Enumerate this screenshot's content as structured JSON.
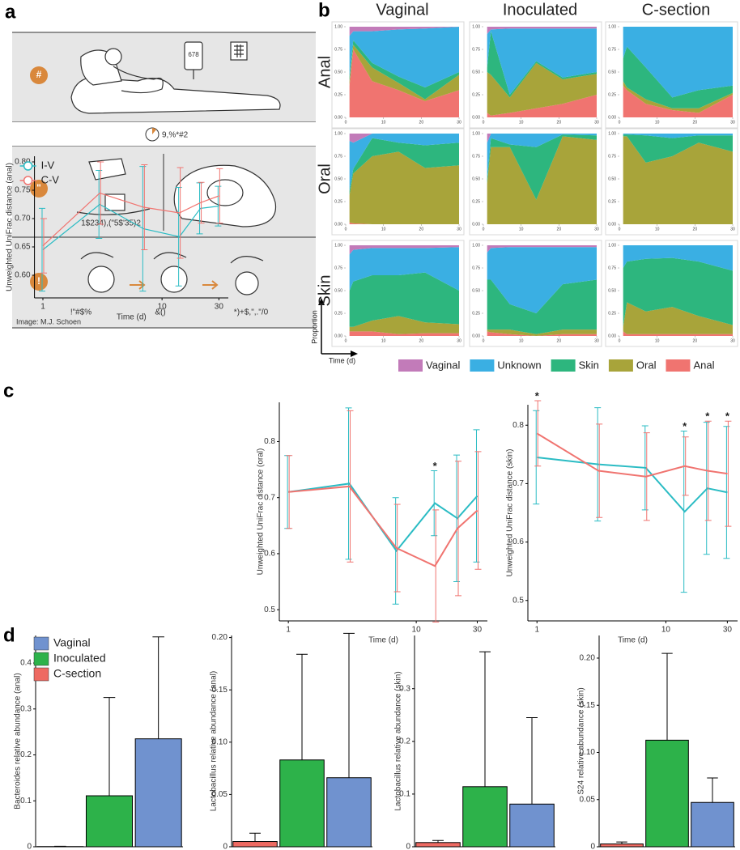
{
  "panel_labels": [
    "a",
    "b",
    "c",
    "d"
  ],
  "illustration": {
    "credit": "Image: M.J. Schoen",
    "steps": [
      "#",
      "\"",
      "!"
    ],
    "iv_bag": "678",
    "timeline": "9,%*#2",
    "swab_label": "1$234),(\"5$'35)2",
    "captions": [
      "!\"#$%",
      "&()",
      "*)+$,\",.\"/0"
    ]
  },
  "chart_data": [
    {
      "type": "stacked_area_grid",
      "columns": [
        "Vaginal",
        "Inoculated",
        "C-section"
      ],
      "rows": [
        "Anal",
        "Oral",
        "Skin"
      ],
      "ylabel": "Proportion",
      "xlabel": "Time (d)",
      "x": [
        1,
        2,
        7,
        14,
        21,
        30
      ],
      "xlim": [
        0,
        30
      ],
      "xticks": [
        0,
        10,
        20,
        30
      ],
      "ylim": [
        0,
        1
      ],
      "yticks": [
        {
          "value": 0,
          "label": "0.00"
        },
        0.25,
        {
          "value": 0.5,
          "label": "0.50"
        },
        0.75,
        {
          "value": 1,
          "label": "1.00"
        }
      ],
      "legend": [
        {
          "name": "Vaginal",
          "color": "#c27bb9"
        },
        {
          "name": "Unknown",
          "color": "#3aafe3"
        },
        {
          "name": "Skin",
          "color": "#2db67e"
        },
        {
          "name": "Oral",
          "color": "#a8a43a"
        },
        {
          "name": "Anal",
          "color": "#f07470"
        }
      ],
      "panels": [
        [
          {
            "series": [
              {
                "values": [
                  0.1,
                  0.05,
                  0.05,
                  0.03,
                  0.02,
                  0
                ]
              },
              {
                "values": [
                  0.45,
                  0.1,
                  0.35,
                  0.52,
                  0.65,
                  0.5
                ]
              },
              {
                "values": [
                  0.05,
                  0.05,
                  0.05,
                  0.07,
                  0.13,
                  0.03
                ]
              },
              {
                "values": [
                  0.05,
                  0.05,
                  0.15,
                  0.08,
                  0.02,
                  0.17
                ]
              },
              {
                "values": [
                  0.35,
                  0.75,
                  0.4,
                  0.3,
                  0.18,
                  0.3
                ]
              }
            ]
          },
          {
            "series": [
              {
                "values": [
                  0.08,
                  0.03,
                  0.02,
                  0.02,
                  0.02,
                  0.02
                ]
              },
              {
                "values": [
                  0.37,
                  0.02,
                  0.73,
                  0.36,
                  0.54,
                  0.48
                ]
              },
              {
                "values": [
                  0.05,
                  0.48,
                  0.03,
                  0.02,
                  0.02,
                  0.02
                ]
              },
              {
                "values": [
                  0.45,
                  0.45,
                  0.17,
                  0.5,
                  0.27,
                  0.23
                ]
              },
              {
                "values": [
                  0.05,
                  0.02,
                  0.05,
                  0.1,
                  0.15,
                  0.25
                ]
              }
            ]
          },
          {
            "series": [
              {
                "values": [
                  0,
                  0,
                  0,
                  0,
                  0,
                  0
                ]
              },
              {
                "values": [
                  0.35,
                  0.22,
                  0.45,
                  0.78,
                  0.7,
                  0.65
                ]
              },
              {
                "values": [
                  0.25,
                  0.45,
                  0.35,
                  0.12,
                  0.2,
                  0.08
                ]
              },
              {
                "values": [
                  0.05,
                  0.03,
                  0.05,
                  0.02,
                  0.05,
                  0.02
                ]
              },
              {
                "values": [
                  0.35,
                  0.3,
                  0.15,
                  0.08,
                  0.05,
                  0.25
                ]
              }
            ]
          }
        ],
        [
          {
            "series": [
              {
                "values": [
                  0.08,
                  0.1,
                  0,
                  0,
                  0,
                  0
                ]
              },
              {
                "values": [
                  0.55,
                  0.29,
                  0.05,
                  0.1,
                  0.13,
                  0.1
                ]
              },
              {
                "values": [
                  0.05,
                  0.05,
                  0.2,
                  0.1,
                  0.25,
                  0.25
                ]
              },
              {
                "values": [
                  0.3,
                  0.55,
                  0.75,
                  0.8,
                  0.62,
                  0.65
                ]
              },
              {
                "values": [
                  0.02,
                  0.01,
                  0,
                  0,
                  0,
                  0
                ]
              }
            ]
          },
          {
            "series": [
              {
                "values": [
                  0.1,
                  0,
                  0,
                  0,
                  0,
                  0
                ]
              },
              {
                "values": [
                  0.4,
                  0.05,
                  0.12,
                  0.15,
                  0.01,
                  0.02
                ]
              },
              {
                "values": [
                  0.05,
                  0.1,
                  0.03,
                  0.58,
                  0.02,
                  0.05
                ]
              },
              {
                "values": [
                  0.45,
                  0.85,
                  0.85,
                  0.27,
                  0.97,
                  0.93
                ]
              },
              {
                "values": [
                  0,
                  0,
                  0,
                  0,
                  0,
                  0
                ]
              }
            ]
          },
          {
            "series": [
              {
                "values": [
                  0,
                  0,
                  0,
                  0,
                  0,
                  0
                ]
              },
              {
                "values": [
                  0.01,
                  0.01,
                  0.02,
                  0.05,
                  0.02,
                  0.02
                ]
              },
              {
                "values": [
                  0.02,
                  0.02,
                  0.3,
                  0.2,
                  0.08,
                  0.18
                ]
              },
              {
                "values": [
                  0.97,
                  0.97,
                  0.68,
                  0.75,
                  0.9,
                  0.8
                ]
              },
              {
                "values": [
                  0,
                  0,
                  0,
                  0,
                  0,
                  0
                ]
              }
            ]
          }
        ],
        [
          {
            "series": [
              {
                "values": [
                  0.1,
                  0.05,
                  0.03,
                  0.03,
                  0.03,
                  0.02
                ]
              },
              {
                "values": [
                  0.4,
                  0.35,
                  0.3,
                  0.3,
                  0.27,
                  0.48
                ]
              },
              {
                "values": [
                  0.4,
                  0.5,
                  0.5,
                  0.45,
                  0.55,
                  0.37
                ]
              },
              {
                "values": [
                  0.05,
                  0.05,
                  0.12,
                  0.2,
                  0.12,
                  0.1
                ]
              },
              {
                "values": [
                  0.05,
                  0.05,
                  0.05,
                  0.02,
                  0.03,
                  0.03
                ]
              }
            ]
          },
          {
            "series": [
              {
                "values": [
                  0.08,
                  0.03,
                  0.02,
                  0.02,
                  0.02,
                  0.02
                ]
              },
              {
                "values": [
                  0.3,
                  0.35,
                  0.63,
                  0.73,
                  0.41,
                  0.36
                ]
              },
              {
                "values": [
                  0.55,
                  0.55,
                  0.28,
                  0.23,
                  0.5,
                  0.55
                ]
              },
              {
                "values": [
                  0.02,
                  0.03,
                  0.05,
                  0.02,
                  0.05,
                  0.05
                ]
              },
              {
                "values": [
                  0.05,
                  0.04,
                  0.02,
                  0,
                  0.02,
                  0.02
                ]
              }
            ]
          },
          {
            "series": [
              {
                "values": [
                  0,
                  0,
                  0,
                  0,
                  0,
                  0
                ]
              },
              {
                "values": [
                  0.25,
                  0.18,
                  0.15,
                  0.14,
                  0.18,
                  0.28
                ]
              },
              {
                "values": [
                  0.65,
                  0.45,
                  0.58,
                  0.54,
                  0.6,
                  0.6
                ]
              },
              {
                "values": [
                  0.05,
                  0.35,
                  0.25,
                  0.3,
                  0.2,
                  0.1
                ]
              },
              {
                "values": [
                  0.05,
                  0.02,
                  0.02,
                  0.02,
                  0.02,
                  0.02
                ]
              }
            ]
          }
        ]
      ]
    },
    {
      "type": "line",
      "ylabel": "Unweighted UniFrac distance (anal)",
      "xlabel": "Time (d)",
      "x": [
        1,
        3,
        7,
        14,
        21,
        30
      ],
      "xscale": "log",
      "xlim": [
        0.85,
        36
      ],
      "xticks": [
        1,
        10,
        30
      ],
      "ylim": [
        0.56,
        0.81
      ],
      "yticks": [
        {
          "value": 0.6,
          "label": "0.60"
        },
        0.65,
        {
          "value": 0.7,
          "label": "0.70"
        },
        0.75,
        {
          "value": 0.8,
          "label": "0.80"
        }
      ],
      "series": [
        {
          "name": "I-V",
          "color": "#2bbcc4",
          "values": [
            0.645,
            0.725,
            0.682,
            0.668,
            0.718,
            0.722
          ],
          "errors": [
            0.073,
            0.06,
            0.11,
            0.087,
            0.045,
            0.035
          ]
        },
        {
          "name": "C-V",
          "color": "#f07470",
          "values": [
            0.652,
            0.745,
            0.72,
            0.71,
            0.728,
            0.74
          ],
          "errors": [
            0.048,
            0.055,
            0.075,
            0.08,
            0.036,
            0.048
          ]
        }
      ]
    },
    {
      "type": "line",
      "ylabel": "Unweighted UniFrac distance (oral)",
      "xlabel": "Time (d)",
      "x": [
        1,
        3,
        7,
        14,
        21,
        30
      ],
      "xscale": "log",
      "xlim": [
        0.85,
        36
      ],
      "xticks": [
        1,
        10,
        30
      ],
      "ylim": [
        0.48,
        0.87
      ],
      "yticks": [
        0.5,
        0.6,
        0.7,
        0.8
      ],
      "series": [
        {
          "color": "#2bbcc4",
          "values": [
            0.71,
            0.725,
            0.605,
            0.69,
            0.663,
            0.703
          ],
          "errors": [
            0.065,
            0.135,
            0.095,
            0.058,
            0.113,
            0.118
          ]
        },
        {
          "color": "#f07470",
          "values": [
            0.71,
            0.72,
            0.61,
            0.578,
            0.645,
            0.677
          ],
          "errors": [
            0.065,
            0.135,
            0.078,
            0.1,
            0.12,
            0.105
          ]
        }
      ],
      "annotations": [
        {
          "x": 14,
          "text": "*"
        }
      ]
    },
    {
      "type": "line",
      "ylabel": "Unweighted UniFrac distance (skin)",
      "xlabel": "Time (d)",
      "x": [
        1,
        3,
        7,
        14,
        21,
        30
      ],
      "xscale": "log",
      "xlim": [
        0.85,
        36
      ],
      "xticks": [
        1,
        10,
        30
      ],
      "ylim": [
        0.465,
        0.835
      ],
      "yticks": [
        0.5,
        0.6,
        0.7,
        0.8
      ],
      "series": [
        {
          "color": "#2bbcc4",
          "values": [
            0.745,
            0.733,
            0.727,
            0.652,
            0.692,
            0.685
          ],
          "errors": [
            0.08,
            0.097,
            0.072,
            0.138,
            0.113,
            0.113
          ]
        },
        {
          "color": "#f07470",
          "values": [
            0.786,
            0.722,
            0.712,
            0.73,
            0.722,
            0.717
          ],
          "errors": [
            0.056,
            0.08,
            0.075,
            0.05,
            0.085,
            0.09
          ]
        }
      ],
      "annotations": [
        {
          "x": 1,
          "text": "*"
        },
        {
          "x": 14,
          "text": "*"
        },
        {
          "x": 21,
          "text": "*"
        },
        {
          "x": 30,
          "text": "*"
        }
      ]
    },
    {
      "type": "bar",
      "ylabel": "Bacteroides relative abundance (anal)",
      "ylim": [
        0,
        0.46
      ],
      "yticks": [
        0,
        0.1,
        0.2,
        0.3,
        0.4
      ],
      "series": [
        {
          "name": "Vaginal",
          "color": "#7092cf",
          "values": [
            0.235
          ],
          "errors": [
            0.222
          ]
        },
        {
          "name": "Inoculated",
          "color": "#2db24a",
          "values": [
            0.111
          ],
          "errors": [
            0.214
          ]
        },
        {
          "name": "C-section",
          "color": "#ee6a62",
          "values": [
            0.0005
          ],
          "errors": [
            0.0005
          ]
        }
      ]
    },
    {
      "type": "bar",
      "ylabel": "Lactobacillus relative abundance (anal)",
      "ylim": [
        0,
        0.202
      ],
      "yticks": [
        0,
        0.05,
        {
          "value": 0.1,
          "label": "0.10"
        },
        0.15,
        {
          "value": 0.2,
          "label": "0.20"
        }
      ],
      "series": [
        {
          "color": "#7092cf",
          "values": [
            0.066
          ],
          "errors": [
            0.138
          ]
        },
        {
          "color": "#2db24a",
          "values": [
            0.083
          ],
          "errors": [
            0.101
          ]
        },
        {
          "color": "#ee6a62",
          "values": [
            0.005
          ],
          "errors": [
            0.008
          ]
        }
      ]
    },
    {
      "type": "bar",
      "ylabel": "Lactobacillus relative abundance (skin)",
      "ylim": [
        0,
        0.401
      ],
      "yticks": [
        0,
        0.1,
        0.2,
        0.3
      ],
      "series": [
        {
          "color": "#7092cf",
          "values": [
            0.081
          ],
          "errors": [
            0.164
          ]
        },
        {
          "color": "#2db24a",
          "values": [
            0.114
          ],
          "errors": [
            0.256
          ]
        },
        {
          "color": "#ee6a62",
          "values": [
            0.008
          ],
          "errors": [
            0.004
          ]
        }
      ]
    },
    {
      "type": "bar",
      "ylabel": "S24 relative abundance (skin)",
      "ylim": [
        0,
        0.224
      ],
      "yticks": [
        0,
        0.05,
        {
          "value": 0.1,
          "label": "0.10"
        },
        0.15,
        {
          "value": 0.2,
          "label": "0.20"
        }
      ],
      "series": [
        {
          "color": "#7092cf",
          "values": [
            0.047
          ],
          "errors": [
            0.026
          ]
        },
        {
          "color": "#2db24a",
          "values": [
            0.113
          ],
          "errors": [
            0.092
          ]
        },
        {
          "color": "#ee6a62",
          "values": [
            0.003
          ],
          "errors": [
            0.002
          ]
        }
      ]
    }
  ]
}
